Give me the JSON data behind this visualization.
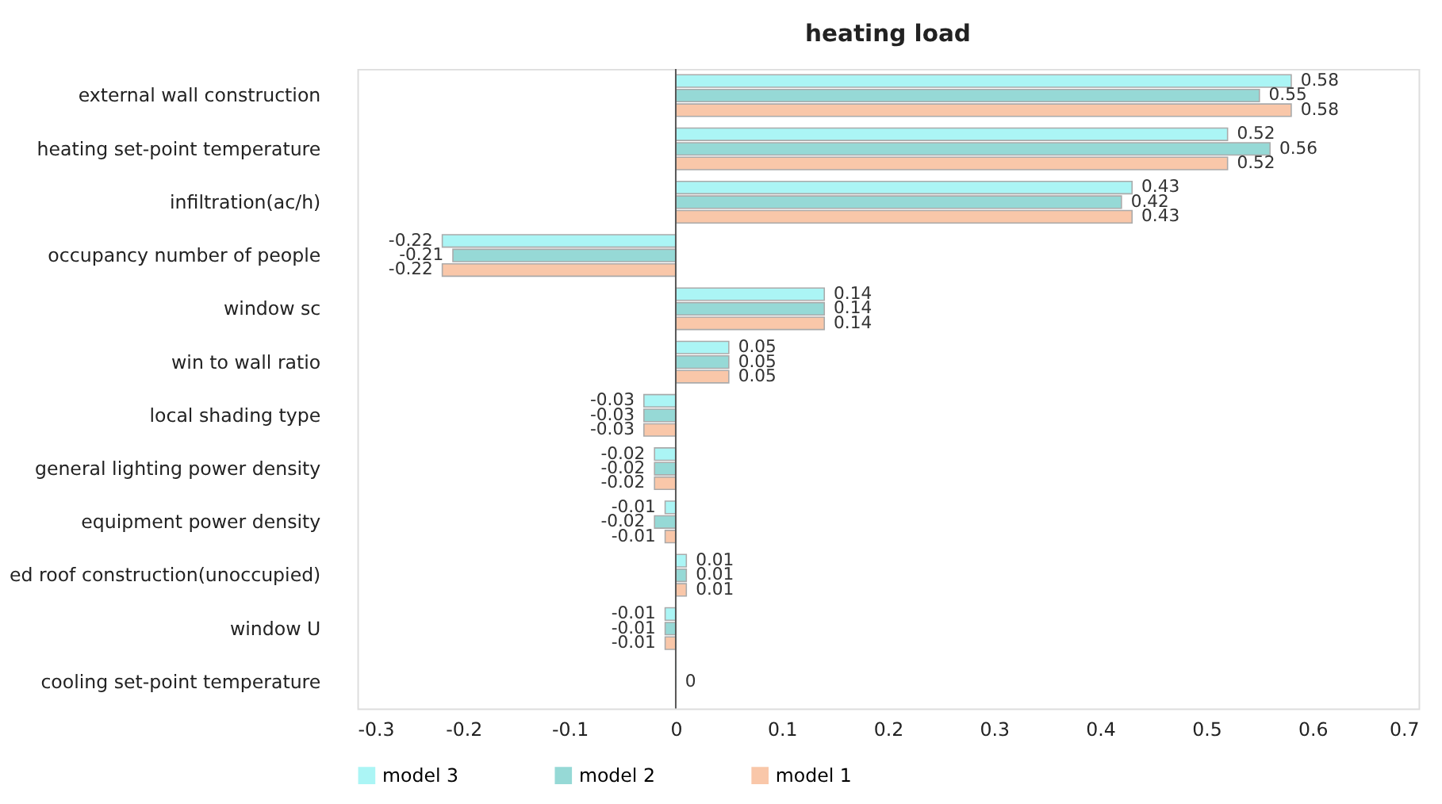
{
  "chart_data": {
    "type": "bar",
    "orientation": "horizontal",
    "title": "heating load",
    "categories": [
      "external wall construction",
      "heating set-point temperature",
      "infiltration(ac/h)",
      "occupancy number of people",
      "window sc",
      "win to wall ratio",
      "local shading type ",
      "general lighting power density",
      "equipment power density",
      "ed roof construction(unoccupied)",
      "window U",
      "cooling set-point temperature"
    ],
    "series": [
      {
        "name": "model 3",
        "color": "#abf5f5",
        "values": [
          0.58,
          0.52,
          0.43,
          -0.22,
          0.14,
          0.05,
          -0.03,
          -0.02,
          -0.01,
          0.01,
          -0.01,
          0
        ],
        "value_labels": [
          "0.58",
          "0.52",
          "0.43",
          "-0.22",
          "0.14",
          "0.05",
          "-0.03",
          "-0.02",
          "-0.01",
          "0.01",
          "-0.01",
          null
        ]
      },
      {
        "name": "model 2",
        "color": "#96d9d6",
        "values": [
          0.55,
          0.56,
          0.42,
          -0.21,
          0.14,
          0.05,
          -0.03,
          -0.02,
          -0.02,
          0.01,
          -0.01,
          0
        ],
        "value_labels": [
          "0.55",
          "0.56",
          "0.42",
          "-0.21",
          "0.14",
          "0.05",
          "-0.03",
          "-0.02",
          "-0.02",
          "0.01",
          "-0.01",
          "0"
        ]
      },
      {
        "name": "model 1",
        "color": "#f9c7a9",
        "values": [
          0.58,
          0.52,
          0.43,
          -0.22,
          0.14,
          0.05,
          -0.03,
          -0.02,
          -0.01,
          0.01,
          -0.01,
          0
        ],
        "value_labels": [
          "0.58",
          "0.52",
          "0.43",
          "-0.22",
          "0.14",
          "0.05",
          "-0.03",
          "-0.02",
          "-0.01",
          "0.01",
          "-0.01",
          null
        ]
      }
    ],
    "xlim": [
      -0.3,
      0.7
    ],
    "xticks": [
      -0.3,
      -0.2,
      -0.1,
      0,
      0.1,
      0.2,
      0.3,
      0.4,
      0.5,
      0.6,
      0.7
    ],
    "ref_lines": [
      {
        "axis": "x",
        "value": 0,
        "color": "#555555"
      }
    ],
    "grid": false,
    "legend": "bottom"
  }
}
